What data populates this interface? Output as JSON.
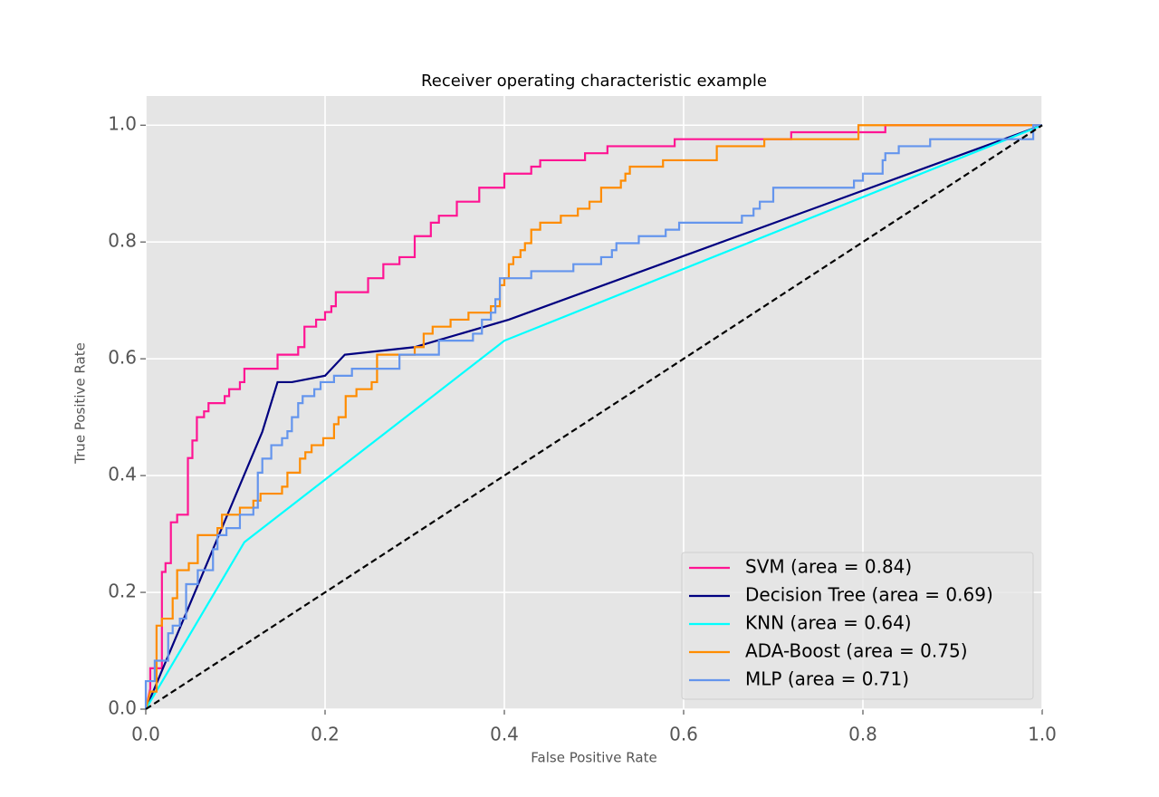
{
  "chart_data": {
    "type": "line",
    "title": "Receiver operating characteristic example",
    "xlabel": "False Positive Rate",
    "ylabel": "True Positive Rate",
    "xlim": [
      0.0,
      1.0
    ],
    "ylim": [
      0.0,
      1.05
    ],
    "xticks": [
      {
        "value": 0.0,
        "label": "0.0"
      },
      {
        "value": 0.2,
        "label": "0.2"
      },
      {
        "value": 0.4,
        "label": "0.4"
      },
      {
        "value": 0.6,
        "label": "0.6"
      },
      {
        "value": 0.8,
        "label": "0.8"
      },
      {
        "value": 1.0,
        "label": "1.0"
      }
    ],
    "yticks": [
      {
        "value": 0.0,
        "label": "0.0"
      },
      {
        "value": 0.2,
        "label": "0.2"
      },
      {
        "value": 0.4,
        "label": "0.4"
      },
      {
        "value": 0.6,
        "label": "0.6"
      },
      {
        "value": 0.8,
        "label": "0.8"
      },
      {
        "value": 1.0,
        "label": "1.0"
      }
    ],
    "grid": true,
    "legend": "lower right",
    "series": [
      {
        "name": "SVM (area = 0.84)",
        "color": "#ff1493",
        "x": [
          0,
          0.005,
          0.005,
          0.018,
          0.018,
          0.022,
          0.022,
          0.028,
          0.028,
          0.035,
          0.035,
          0.047,
          0.047,
          0.052,
          0.052,
          0.057,
          0.057,
          0.065,
          0.065,
          0.07,
          0.07,
          0.088,
          0.088,
          0.093,
          0.093,
          0.105,
          0.105,
          0.11,
          0.11,
          0.147,
          0.147,
          0.17,
          0.17,
          0.177,
          0.177,
          0.19,
          0.19,
          0.2,
          0.2,
          0.207,
          0.207,
          0.212,
          0.212,
          0.248,
          0.248,
          0.265,
          0.265,
          0.283,
          0.283,
          0.3,
          0.3,
          0.318,
          0.318,
          0.327,
          0.327,
          0.347,
          0.347,
          0.372,
          0.372,
          0.4,
          0.4,
          0.43,
          0.43,
          0.44,
          0.44,
          0.49,
          0.49,
          0.515,
          0.515,
          0.59,
          0.59,
          0.72,
          0.72,
          0.825,
          0.825,
          1
        ],
        "values": [
          0,
          0.035,
          0.07,
          0.07,
          0.235,
          0.235,
          0.25,
          0.25,
          0.32,
          0.32,
          0.333,
          0.333,
          0.43,
          0.43,
          0.46,
          0.46,
          0.5,
          0.5,
          0.51,
          0.51,
          0.524,
          0.524,
          0.536,
          0.536,
          0.548,
          0.548,
          0.56,
          0.56,
          0.583,
          0.583,
          0.607,
          0.607,
          0.62,
          0.62,
          0.655,
          0.655,
          0.667,
          0.667,
          0.68,
          0.68,
          0.69,
          0.69,
          0.714,
          0.714,
          0.738,
          0.738,
          0.762,
          0.762,
          0.774,
          0.774,
          0.81,
          0.81,
          0.833,
          0.833,
          0.845,
          0.845,
          0.869,
          0.869,
          0.893,
          0.893,
          0.917,
          0.917,
          0.929,
          0.929,
          0.94,
          0.94,
          0.952,
          0.952,
          0.964,
          0.964,
          0.976,
          0.976,
          0.988,
          0.988,
          1,
          1
        ]
      },
      {
        "name": "Decision Tree (area = 0.69)",
        "color": "#000080",
        "x": [
          0,
          0.13,
          0.147,
          0.163,
          0.2,
          0.222,
          0.3,
          0.405,
          1
        ],
        "values": [
          0,
          0.475,
          0.56,
          0.56,
          0.571,
          0.607,
          0.62,
          0.667,
          1
        ]
      },
      {
        "name": "KNN (area = 0.64)",
        "color": "#00ffff",
        "x": [
          0,
          0.11,
          0.4,
          1
        ],
        "values": [
          0,
          0.286,
          0.631,
          1
        ]
      },
      {
        "name": "ADA-Boost (area = 0.75)",
        "color": "#ff8c00",
        "x": [
          0,
          0.005,
          0.012,
          0.012,
          0.018,
          0.018,
          0.03,
          0.03,
          0.035,
          0.035,
          0.048,
          0.048,
          0.058,
          0.058,
          0.08,
          0.08,
          0.085,
          0.085,
          0.105,
          0.105,
          0.12,
          0.12,
          0.128,
          0.128,
          0.152,
          0.152,
          0.158,
          0.158,
          0.172,
          0.172,
          0.178,
          0.178,
          0.185,
          0.185,
          0.198,
          0.198,
          0.21,
          0.21,
          0.215,
          0.215,
          0.223,
          0.223,
          0.235,
          0.235,
          0.252,
          0.252,
          0.258,
          0.258,
          0.3,
          0.3,
          0.31,
          0.31,
          0.32,
          0.32,
          0.34,
          0.34,
          0.36,
          0.36,
          0.385,
          0.385,
          0.395,
          0.395,
          0.4,
          0.4,
          0.405,
          0.405,
          0.41,
          0.41,
          0.418,
          0.418,
          0.423,
          0.423,
          0.43,
          0.43,
          0.44,
          0.44,
          0.463,
          0.463,
          0.482,
          0.482,
          0.495,
          0.495,
          0.508,
          0.508,
          0.53,
          0.53,
          0.535,
          0.535,
          0.54,
          0.54,
          0.577,
          0.577,
          0.637,
          0.637,
          0.69,
          0.69,
          0.795,
          0.795,
          1
        ],
        "values": [
          0,
          0.03,
          0.03,
          0.143,
          0.143,
          0.155,
          0.155,
          0.19,
          0.19,
          0.238,
          0.238,
          0.25,
          0.25,
          0.298,
          0.298,
          0.31,
          0.31,
          0.333,
          0.333,
          0.345,
          0.345,
          0.357,
          0.357,
          0.369,
          0.369,
          0.381,
          0.381,
          0.405,
          0.405,
          0.429,
          0.429,
          0.44,
          0.44,
          0.452,
          0.452,
          0.464,
          0.464,
          0.488,
          0.488,
          0.5,
          0.5,
          0.536,
          0.536,
          0.548,
          0.548,
          0.56,
          0.56,
          0.607,
          0.607,
          0.62,
          0.62,
          0.643,
          0.643,
          0.655,
          0.655,
          0.667,
          0.667,
          0.679,
          0.679,
          0.69,
          0.69,
          0.726,
          0.726,
          0.738,
          0.738,
          0.762,
          0.762,
          0.774,
          0.774,
          0.786,
          0.786,
          0.798,
          0.798,
          0.821,
          0.821,
          0.833,
          0.833,
          0.845,
          0.845,
          0.857,
          0.857,
          0.869,
          0.869,
          0.893,
          0.893,
          0.905,
          0.905,
          0.917,
          0.917,
          0.929,
          0.929,
          0.94,
          0.94,
          0.964,
          0.964,
          0.976,
          0.976,
          1,
          1
        ]
      },
      {
        "name": "MLP (area = 0.71)",
        "color": "#6495ed",
        "x": [
          0,
          0,
          0.01,
          0.01,
          0.025,
          0.025,
          0.03,
          0.03,
          0.038,
          0.038,
          0.045,
          0.045,
          0.058,
          0.058,
          0.075,
          0.075,
          0.08,
          0.08,
          0.09,
          0.09,
          0.105,
          0.105,
          0.12,
          0.12,
          0.125,
          0.125,
          0.13,
          0.13,
          0.14,
          0.14,
          0.152,
          0.152,
          0.158,
          0.158,
          0.163,
          0.163,
          0.17,
          0.17,
          0.175,
          0.175,
          0.188,
          0.188,
          0.195,
          0.195,
          0.21,
          0.21,
          0.23,
          0.23,
          0.283,
          0.283,
          0.327,
          0.327,
          0.365,
          0.365,
          0.375,
          0.375,
          0.385,
          0.385,
          0.39,
          0.39,
          0.395,
          0.395,
          0.43,
          0.43,
          0.477,
          0.477,
          0.508,
          0.508,
          0.52,
          0.52,
          0.525,
          0.525,
          0.55,
          0.55,
          0.58,
          0.58,
          0.595,
          0.595,
          0.665,
          0.665,
          0.678,
          0.678,
          0.685,
          0.685,
          0.7,
          0.7,
          0.79,
          0.79,
          0.8,
          0.8,
          0.822,
          0.822,
          0.825,
          0.825,
          0.84,
          0.84,
          0.875,
          0.875,
          0.99,
          0.99,
          1
        ],
        "values": [
          0,
          0.048,
          0.048,
          0.083,
          0.083,
          0.13,
          0.13,
          0.143,
          0.143,
          0.155,
          0.155,
          0.214,
          0.214,
          0.238,
          0.238,
          0.274,
          0.274,
          0.298,
          0.298,
          0.31,
          0.31,
          0.333,
          0.333,
          0.345,
          0.345,
          0.405,
          0.405,
          0.429,
          0.429,
          0.452,
          0.452,
          0.464,
          0.464,
          0.476,
          0.476,
          0.5,
          0.5,
          0.524,
          0.524,
          0.536,
          0.536,
          0.548,
          0.548,
          0.56,
          0.56,
          0.571,
          0.571,
          0.583,
          0.583,
          0.607,
          0.607,
          0.631,
          0.631,
          0.643,
          0.643,
          0.667,
          0.667,
          0.679,
          0.679,
          0.702,
          0.702,
          0.738,
          0.738,
          0.75,
          0.75,
          0.762,
          0.762,
          0.774,
          0.774,
          0.786,
          0.786,
          0.798,
          0.798,
          0.81,
          0.81,
          0.821,
          0.821,
          0.833,
          0.833,
          0.845,
          0.845,
          0.857,
          0.857,
          0.869,
          0.869,
          0.893,
          0.893,
          0.905,
          0.905,
          0.917,
          0.917,
          0.94,
          0.94,
          0.952,
          0.952,
          0.964,
          0.964,
          0.976,
          0.976,
          1,
          1
        ]
      },
      {
        "color": "#000000",
        "linestyle": "dashed",
        "x": [
          0,
          1
        ],
        "values": [
          0,
          1
        ]
      }
    ]
  }
}
